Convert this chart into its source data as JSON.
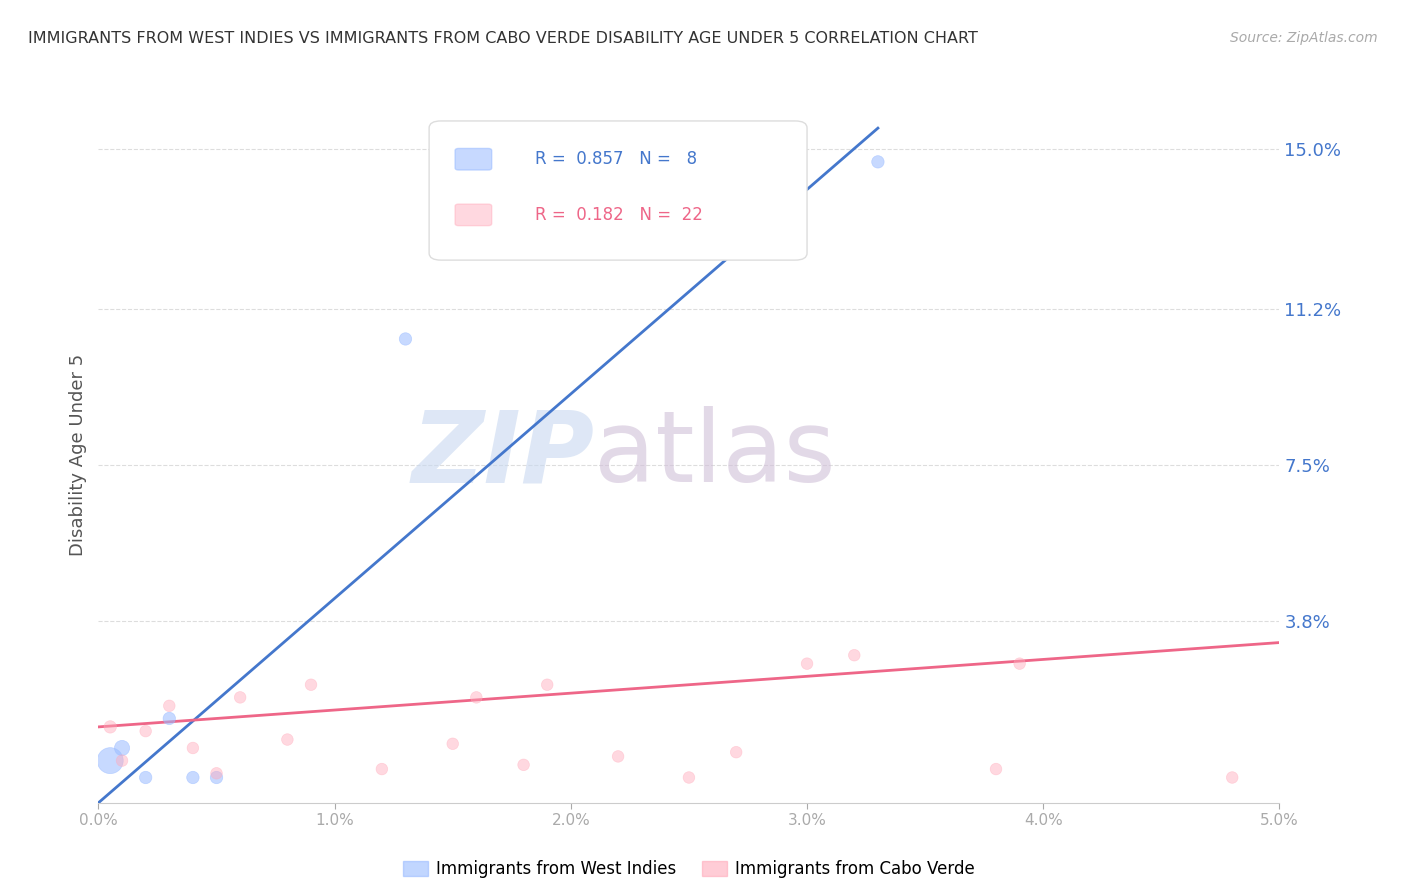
{
  "title": "IMMIGRANTS FROM WEST INDIES VS IMMIGRANTS FROM CABO VERDE DISABILITY AGE UNDER 5 CORRELATION CHART",
  "source": "Source: ZipAtlas.com",
  "ylabel": "Disability Age Under 5",
  "ytick_labels": [
    "15.0%",
    "11.2%",
    "7.5%",
    "3.8%"
  ],
  "ytick_values": [
    0.15,
    0.112,
    0.075,
    0.038
  ],
  "xlim": [
    0.0,
    0.05
  ],
  "ylim": [
    -0.005,
    0.16
  ],
  "background_color": "#ffffff",
  "grid_color": "#dddddd",
  "watermark_zip": "ZIP",
  "watermark_atlas": "atlas",
  "watermark_color_zip": "#c8d8f0",
  "watermark_color_atlas": "#d0c0d8",
  "legend_R_blue": "0.857",
  "legend_N_blue": "8",
  "legend_R_pink": "0.182",
  "legend_N_pink": "22",
  "blue_color": "#99bbff",
  "blue_scatter_color": "#99bbff",
  "pink_color": "#ffaabb",
  "pink_scatter_color": "#ffaabb",
  "blue_line_color": "#4477cc",
  "pink_line_color": "#ee6688",
  "west_indies_x": [
    0.0005,
    0.001,
    0.002,
    0.003,
    0.004,
    0.005,
    0.013,
    0.033
  ],
  "west_indies_y": [
    0.005,
    0.008,
    0.001,
    0.015,
    0.001,
    0.001,
    0.105,
    0.147
  ],
  "west_indies_size": [
    350,
    120,
    80,
    80,
    80,
    80,
    80,
    80
  ],
  "cabo_verde_x": [
    0.0005,
    0.001,
    0.002,
    0.003,
    0.004,
    0.005,
    0.006,
    0.008,
    0.009,
    0.012,
    0.015,
    0.016,
    0.018,
    0.019,
    0.022,
    0.025,
    0.027,
    0.03,
    0.032,
    0.038,
    0.039,
    0.048
  ],
  "cabo_verde_y": [
    0.013,
    0.005,
    0.012,
    0.018,
    0.008,
    0.002,
    0.02,
    0.01,
    0.023,
    0.003,
    0.009,
    0.02,
    0.004,
    0.023,
    0.006,
    0.001,
    0.007,
    0.028,
    0.03,
    0.003,
    0.028,
    0.001
  ],
  "cabo_verde_size": [
    80,
    70,
    70,
    70,
    70,
    70,
    70,
    70,
    70,
    70,
    70,
    70,
    70,
    70,
    70,
    70,
    70,
    70,
    70,
    70,
    70,
    70
  ],
  "blue_trendline_x": [
    0.0,
    0.033
  ],
  "blue_trendline_y": [
    -0.005,
    0.155
  ],
  "pink_trendline_x": [
    0.0,
    0.05
  ],
  "pink_trendline_y": [
    0.013,
    0.033
  ]
}
